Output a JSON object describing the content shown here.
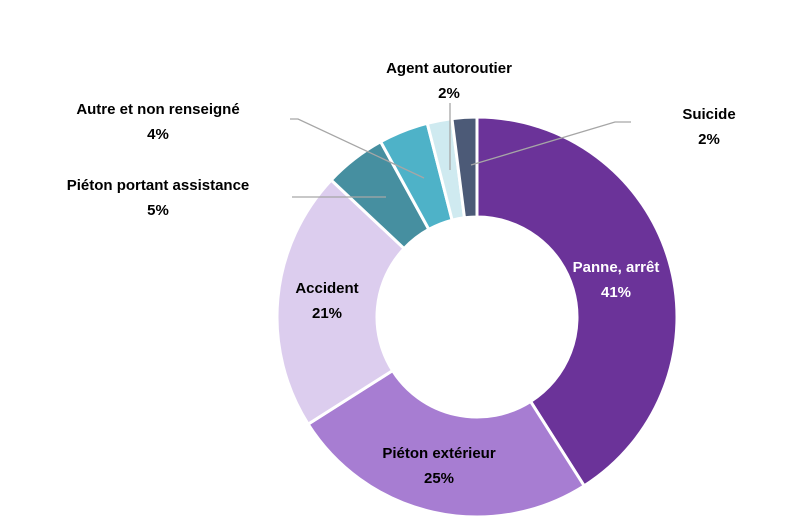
{
  "chart_data": {
    "type": "pie",
    "variant": "donut",
    "categories": [
      "Panne, arrêt",
      "Piéton extérieur",
      "Accident",
      "Piéton portant assistance",
      "Autre et non renseigné",
      "Agent autoroutier",
      "Suicide"
    ],
    "values": [
      41,
      25,
      21,
      5,
      4,
      2,
      2
    ],
    "value_labels": [
      "41%",
      "25%",
      "21%",
      "5%",
      "4%",
      "2%",
      "2%"
    ],
    "colors": [
      "#6B3399",
      "#A77DD2",
      "#DCCDEE",
      "#468FA0",
      "#4EB2C8",
      "#CFEAF0",
      "#4C5A77"
    ],
    "title": "",
    "legend": "none"
  }
}
